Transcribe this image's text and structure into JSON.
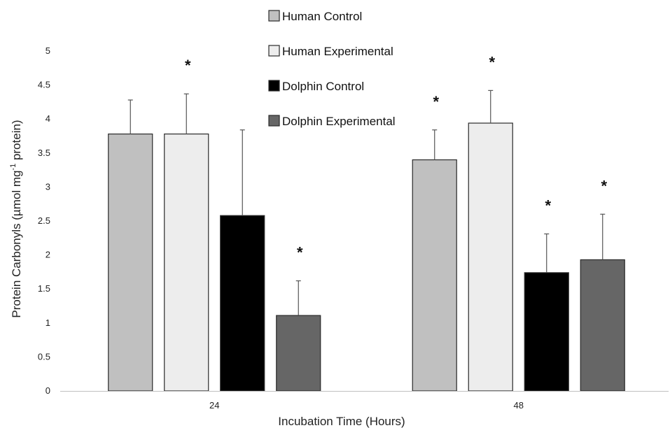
{
  "chart_data": {
    "type": "bar",
    "title": "",
    "xlabel": "Incubation Time (Hours)",
    "ylabel_main": "Protein Carbonyls (µmol mg",
    "ylabel_sup": "-1",
    "ylabel_tail": " protein)",
    "ylim": [
      0,
      5
    ],
    "yticks": [
      0,
      0.5,
      1,
      1.5,
      2,
      2.5,
      3,
      3.5,
      4,
      4.5,
      5
    ],
    "categories": [
      "24",
      "48"
    ],
    "series": [
      {
        "name": "Human Control",
        "color": "#c0c0c0",
        "values": [
          3.78,
          3.4
        ],
        "errors": [
          0.5,
          0.44
        ],
        "significant": [
          false,
          true
        ]
      },
      {
        "name": "Human Experimental",
        "color": "#ededed",
        "values": [
          3.78,
          3.94
        ],
        "errors": [
          0.59,
          0.48
        ],
        "significant": [
          true,
          true
        ]
      },
      {
        "name": "Dolphin Control",
        "color": "#000000",
        "values": [
          2.58,
          1.74
        ],
        "errors": [
          1.26,
          0.57
        ],
        "significant": [
          false,
          true
        ]
      },
      {
        "name": "Dolphin Experimental",
        "color": "#666666",
        "values": [
          1.11,
          1.93
        ],
        "errors": [
          0.51,
          0.67
        ],
        "significant": [
          true,
          true
        ]
      }
    ],
    "significance_marker": "*",
    "legend_position": "top-center",
    "grid": false
  }
}
